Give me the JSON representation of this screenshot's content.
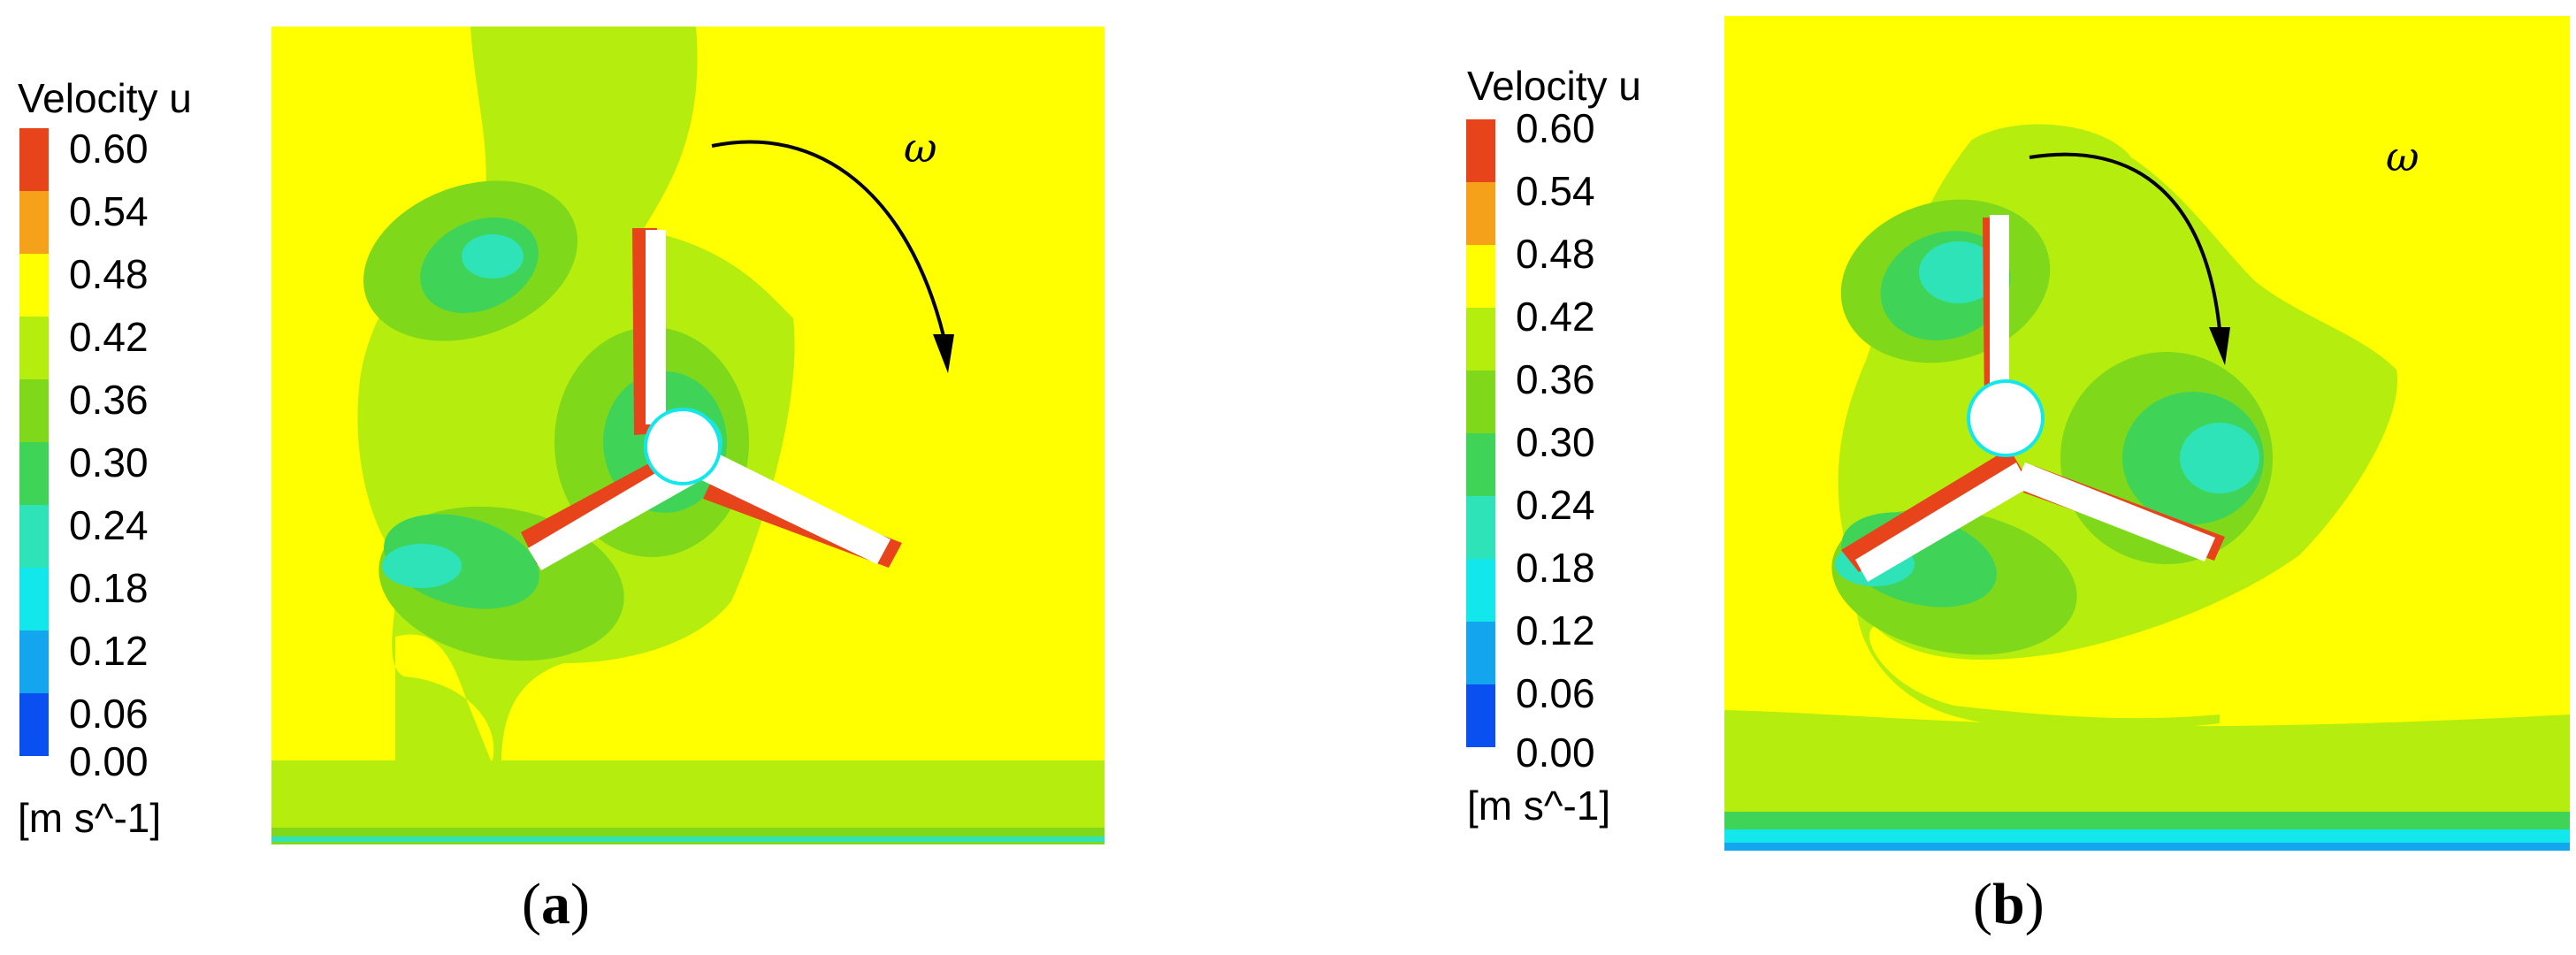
{
  "legend": {
    "title": "Velocity u",
    "unit": "[m s^-1]",
    "ticks": [
      "0.60",
      "0.54",
      "0.48",
      "0.42",
      "0.36",
      "0.30",
      "0.24",
      "0.18",
      "0.12",
      "0.06",
      "0.00"
    ],
    "colors": [
      "#e8441c",
      "#f5a21a",
      "#ffff00",
      "#b4ed0e",
      "#7fd91a",
      "#3fd458",
      "#2fe3b8",
      "#12e8ec",
      "#14a5ef",
      "#0a4ff0"
    ]
  },
  "panels": [
    {
      "caption_open": "(",
      "caption_letter": "a",
      "caption_close": ")",
      "rotation_label": "ω"
    },
    {
      "caption_open": "(",
      "caption_letter": "b",
      "caption_close": ")",
      "rotation_label": "ω"
    }
  ]
}
